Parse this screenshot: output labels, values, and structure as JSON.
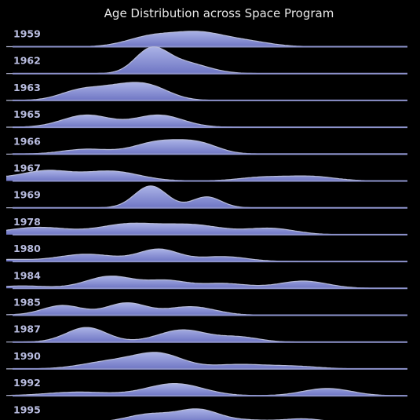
{
  "chart_data": {
    "type": "ridgeline",
    "title": "Age Distribution across Space Program",
    "x_range": [
      20,
      70
    ],
    "series": [
      {
        "name": "1959",
        "peaks": [
          {
            "mu": 44,
            "sd": 3.2,
            "w": 0.55
          },
          {
            "mu": 38,
            "sd": 3.0,
            "w": 0.4
          },
          {
            "mu": 50,
            "sd": 3.0,
            "w": 0.2
          }
        ]
      },
      {
        "name": "1962",
        "peaks": [
          {
            "mu": 38,
            "sd": 2.0,
            "w": 0.9
          },
          {
            "mu": 42,
            "sd": 3.0,
            "w": 0.45
          }
        ]
      },
      {
        "name": "1963",
        "peaks": [
          {
            "mu": 34,
            "sd": 3.0,
            "w": 0.5
          },
          {
            "mu": 38,
            "sd": 2.6,
            "w": 0.45
          },
          {
            "mu": 29,
            "sd": 2.5,
            "w": 0.35
          }
        ]
      },
      {
        "name": "1965",
        "peaks": [
          {
            "mu": 30,
            "sd": 3.0,
            "w": 0.5
          },
          {
            "mu": 39,
            "sd": 3.0,
            "w": 0.5
          }
        ]
      },
      {
        "name": "1966",
        "peaks": [
          {
            "mu": 39,
            "sd": 3.0,
            "w": 0.5
          },
          {
            "mu": 44,
            "sd": 2.5,
            "w": 0.4
          },
          {
            "mu": 30,
            "sd": 3.0,
            "w": 0.2
          }
        ]
      },
      {
        "name": "1967",
        "peaks": [
          {
            "mu": 25,
            "sd": 3.0,
            "w": 0.4
          },
          {
            "mu": 33,
            "sd": 3.5,
            "w": 0.4
          },
          {
            "mu": 52,
            "sd": 3.0,
            "w": 0.15
          },
          {
            "mu": 58,
            "sd": 3.0,
            "w": 0.18
          },
          {
            "mu": 18,
            "sd": 3.0,
            "w": 0.12
          }
        ]
      },
      {
        "name": "1969",
        "peaks": [
          {
            "mu": 38,
            "sd": 2.0,
            "w": 0.9
          },
          {
            "mu": 45,
            "sd": 1.8,
            "w": 0.45
          }
        ]
      },
      {
        "name": "1978",
        "peaks": [
          {
            "mu": 24,
            "sd": 4.0,
            "w": 0.3
          },
          {
            "mu": 35,
            "sd": 3.5,
            "w": 0.4
          },
          {
            "mu": 43,
            "sd": 4.0,
            "w": 0.4
          },
          {
            "mu": 53,
            "sd": 3.0,
            "w": 0.25
          }
        ]
      },
      {
        "name": "1980",
        "peaks": [
          {
            "mu": 30,
            "sd": 3.5,
            "w": 0.3
          },
          {
            "mu": 39,
            "sd": 2.5,
            "w": 0.5
          },
          {
            "mu": 47,
            "sd": 3.0,
            "w": 0.2
          },
          {
            "mu": 20,
            "sd": 3.0,
            "w": 0.08
          }
        ]
      },
      {
        "name": "1984",
        "peaks": [
          {
            "mu": 33,
            "sd": 3.0,
            "w": 0.5
          },
          {
            "mu": 40,
            "sd": 2.5,
            "w": 0.3
          },
          {
            "mu": 57,
            "sd": 3.0,
            "w": 0.3
          },
          {
            "mu": 22,
            "sd": 3.0,
            "w": 0.1
          },
          {
            "mu": 47,
            "sd": 3.0,
            "w": 0.2
          }
        ]
      },
      {
        "name": "1985",
        "peaks": [
          {
            "mu": 35,
            "sd": 2.5,
            "w": 0.5
          },
          {
            "mu": 27,
            "sd": 2.5,
            "w": 0.4
          },
          {
            "mu": 43,
            "sd": 3.0,
            "w": 0.35
          },
          {
            "mu": 14,
            "sd": 3.0,
            "w": 0.12
          }
        ]
      },
      {
        "name": "1987",
        "peaks": [
          {
            "mu": 30,
            "sd": 2.5,
            "w": 0.6
          },
          {
            "mu": 42,
            "sd": 3.0,
            "w": 0.5
          },
          {
            "mu": 49,
            "sd": 2.5,
            "w": 0.2
          }
        ]
      },
      {
        "name": "1990",
        "peaks": [
          {
            "mu": 39,
            "sd": 3.0,
            "w": 0.6
          },
          {
            "mu": 33,
            "sd": 3.5,
            "w": 0.3
          },
          {
            "mu": 49,
            "sd": 3.5,
            "w": 0.18
          },
          {
            "mu": 56,
            "sd": 3.0,
            "w": 0.1
          }
        ]
      },
      {
        "name": "1992",
        "peaks": [
          {
            "mu": 41,
            "sd": 3.5,
            "w": 0.5
          },
          {
            "mu": 60,
            "sd": 3.0,
            "w": 0.3
          },
          {
            "mu": 29,
            "sd": 4.0,
            "w": 0.15
          }
        ]
      },
      {
        "name": "1995",
        "peaks": [
          {
            "mu": 44,
            "sd": 2.5,
            "w": 0.5
          },
          {
            "mu": 38,
            "sd": 3.0,
            "w": 0.35
          },
          {
            "mu": 57,
            "sd": 2.5,
            "w": 0.15
          },
          {
            "mu": 50,
            "sd": 3.0,
            "w": 0.1
          }
        ]
      }
    ],
    "colors": {
      "fill_top": "#aab2e6",
      "fill_bottom": "#6f76c4",
      "outline": "#b8bcd8",
      "baseline": "#8d93cc",
      "background": "#000000",
      "title": "#e8e8e8",
      "label": "#b9bde0"
    }
  }
}
